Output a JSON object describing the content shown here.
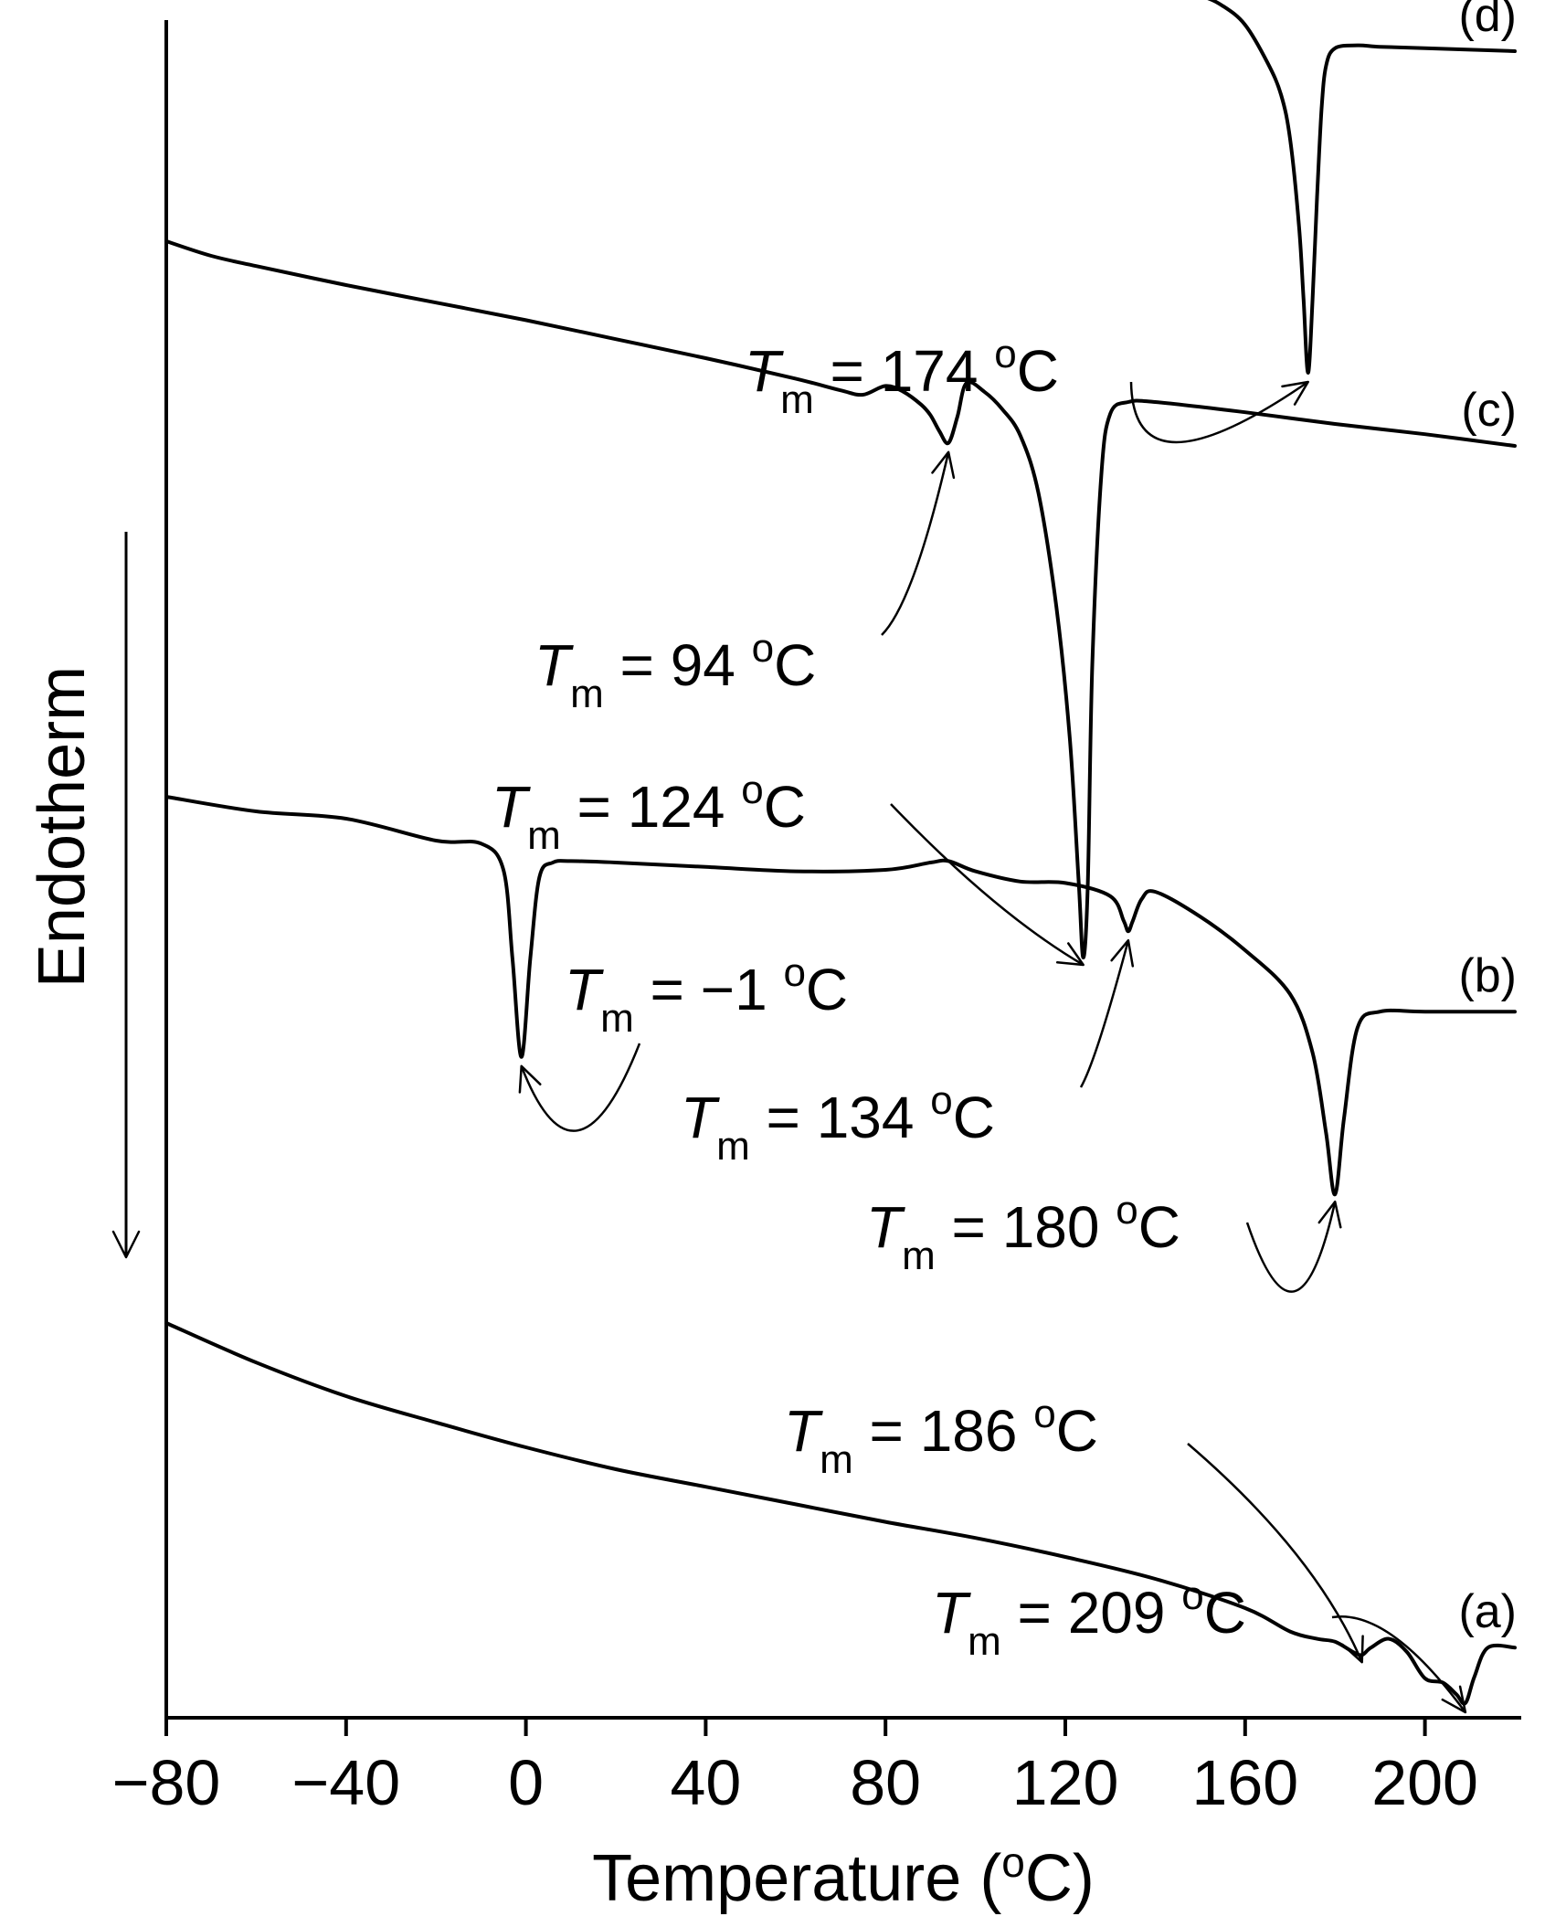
{
  "chart_data": {
    "type": "line",
    "title": "",
    "xlabel": "Temperature (",
    "xlabel_sup": "o",
    "xlabel_end": "C)",
    "ylabel": "Endotherm",
    "y_direction_note": "arrow pointing down",
    "xlim": [
      -80,
      220
    ],
    "x_ticks": [
      -80,
      -40,
      0,
      40,
      80,
      120,
      160,
      200
    ],
    "x_tick_labels": [
      "−80",
      "−40",
      "0",
      "40",
      "80",
      "120",
      "160",
      "200"
    ],
    "grid": false,
    "y_ticks_shown": false,
    "series": [
      {
        "name": "(a)",
        "x": [
          -80,
          -60,
          -40,
          -20,
          0,
          20,
          40,
          60,
          80,
          100,
          120,
          140,
          160,
          170,
          176,
          180,
          184,
          186,
          188,
          192,
          196,
          200,
          204,
          207,
          209,
          211,
          214,
          220
        ],
        "y": [
          150,
          123,
          100,
          82,
          65,
          50,
          38,
          26,
          14,
          3,
          -10,
          -25,
          -45,
          -61,
          -66,
          -68,
          -75,
          -77,
          -72,
          -66,
          -75,
          -93,
          -96,
          -104,
          -110,
          -92,
          -72,
          -72
        ]
      },
      {
        "name": "(b)",
        "x": [
          -80,
          -60,
          -40,
          -20,
          -10,
          -5,
          -3,
          -1,
          1,
          3,
          6,
          10,
          20,
          40,
          60,
          80,
          90,
          94,
          100,
          110,
          120,
          130,
          133,
          134,
          135,
          137,
          140,
          150,
          160,
          170,
          175,
          178,
          180,
          182,
          185,
          190,
          200,
          220
        ],
        "y": [
          510,
          500,
          495,
          480,
          478,
          460,
          400,
          332,
          400,
          455,
          465,
          466,
          465,
          462,
          459,
          460,
          465,
          466,
          459,
          452,
          451,
          442,
          425,
          418,
          425,
          440,
          445,
          428,
          405,
          375,
          335,
          280,
          238,
          290,
          352,
          363,
          363,
          363
        ]
      },
      {
        "name": "(c)",
        "x": [
          -80,
          -70,
          -60,
          -40,
          -20,
          0,
          20,
          40,
          60,
          70,
          75,
          80,
          84,
          88,
          90,
          92,
          94,
          96,
          98,
          102,
          106,
          110,
          114,
          118,
          121,
          123,
          124,
          125,
          126,
          128,
          130,
          134,
          140,
          160,
          180,
          200,
          220
        ],
        "y": [
          890,
          880,
          873,
          860,
          848,
          836,
          823,
          810,
          796,
          788,
          785,
          791,
          787,
          778,
          771,
          760,
          752,
          770,
          793,
          787,
          775,
          757,
          718,
          640,
          550,
          450,
          400,
          450,
          600,
          730,
          772,
          780,
          780,
          773,
          765,
          758,
          750
        ]
      },
      {
        "name": "(d)",
        "x": [
          -80,
          -60,
          -40,
          -20,
          0,
          20,
          40,
          60,
          80,
          100,
          110,
          120,
          125,
          130,
          140,
          150,
          155,
          160,
          165,
          168,
          170,
          172,
          173,
          174,
          175,
          176,
          177,
          178,
          180,
          185,
          190,
          200,
          220
        ],
        "y": [
          1154,
          1142,
          1132,
          1122,
          1112,
          1103,
          1094,
          1088,
          1082,
          1077,
          1075,
          1073,
          1074,
          1071,
          1066,
          1058,
          1051,
          1038,
          1012,
          990,
          960,
          900,
          850,
          800,
          850,
          920,
          980,
          1010,
          1022,
          1024,
          1023,
          1022,
          1020
        ]
      }
    ],
    "annotations": [
      {
        "label": "T",
        "sub": "m",
        "text": " = 174 ",
        "sup": "o",
        "unit": "C",
        "series": "(d)",
        "x": 174
      },
      {
        "label": "T",
        "sub": "m",
        "text": " = 94 ",
        "sup": "o",
        "unit": "C",
        "series": "(c)",
        "x": 94
      },
      {
        "label": "T",
        "sub": "m",
        "text": " = 124 ",
        "sup": "o",
        "unit": "C",
        "series": "(c)",
        "x": 124
      },
      {
        "label": "T",
        "sub": "m",
        "text": " = −1 ",
        "sup": "o",
        "unit": "C",
        "series": "(b)",
        "x": -1
      },
      {
        "label": "T",
        "sub": "m",
        "text": " = 134 ",
        "sup": "o",
        "unit": "C",
        "series": "(b)",
        "x": 134
      },
      {
        "label": "T",
        "sub": "m",
        "text": " = 180 ",
        "sup": "o",
        "unit": "C",
        "series": "(b)",
        "x": 180
      },
      {
        "label": "T",
        "sub": "m",
        "text": " = 186 ",
        "sup": "o",
        "unit": "C",
        "series": "(a)",
        "x": 186
      },
      {
        "label": "T",
        "sub": "m",
        "text": " = 209 ",
        "sup": "o",
        "unit": "C",
        "series": "(a)",
        "x": 209
      }
    ]
  }
}
